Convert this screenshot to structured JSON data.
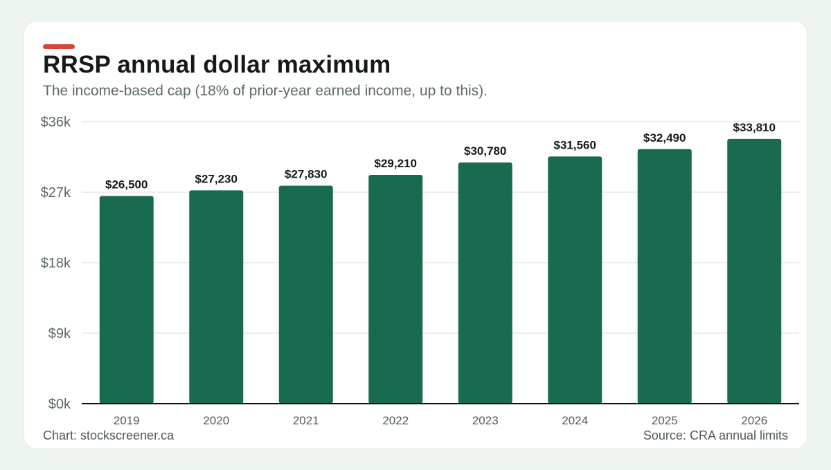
{
  "header": {
    "title": "RRSP annual dollar maximum",
    "subtitle": "The income-based cap (18% of prior-year earned income, up to this)."
  },
  "footer": {
    "credit": "Chart: stockscreener.ca",
    "source": "Source: CRA annual limits"
  },
  "colors": {
    "accent": "#d64535",
    "bar": "#186b51",
    "grid": "#e5e8e6",
    "axis": "#111111"
  },
  "chart_data": {
    "type": "bar",
    "title": "RRSP annual dollar maximum",
    "subtitle": "The income-based cap (18% of prior-year earned income, up to this).",
    "categories": [
      "2019",
      "2020",
      "2021",
      "2022",
      "2023",
      "2024",
      "2025",
      "2026"
    ],
    "values": [
      26500,
      27230,
      27830,
      29210,
      30780,
      31560,
      32490,
      33810
    ],
    "value_labels": [
      "$26,500",
      "$27,230",
      "$27,830",
      "$29,210",
      "$30,780",
      "$31,560",
      "$32,490",
      "$33,810"
    ],
    "y_ticks": [
      0,
      9000,
      18000,
      27000,
      36000
    ],
    "y_tick_labels": [
      "$0k",
      "$9k",
      "$18k",
      "$27k",
      "$36k"
    ],
    "ylim": [
      0,
      36000
    ],
    "xlabel": "",
    "ylabel": "",
    "grid": true,
    "legend": "none"
  }
}
